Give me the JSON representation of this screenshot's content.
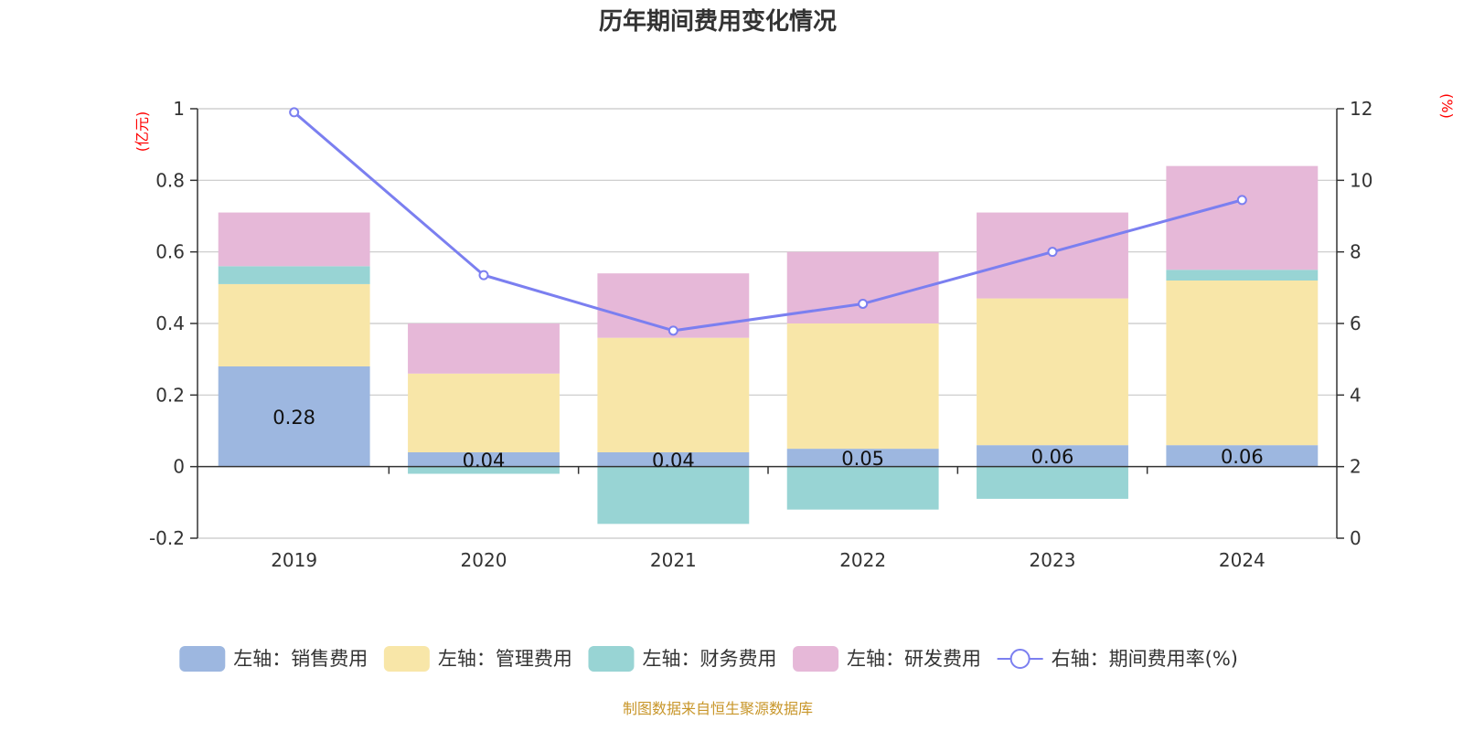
{
  "title": "历年期间费用变化情况",
  "source_note": "制图数据来自恒生聚源数据库",
  "colors": {
    "sales": "#9db7e0",
    "admin": "#f8e6a8",
    "finance": "#98d4d4",
    "rd": "#e6b8d8",
    "rate_line": "#7b7ff0",
    "unit_text": "#ff0000",
    "axis": "#333333",
    "grid": "#c8c8c8",
    "source_text": "#c8962a"
  },
  "chart_data": {
    "type": "bar",
    "stacked": true,
    "title": "历年期间费用变化情况",
    "categories": [
      "2019",
      "2020",
      "2021",
      "2022",
      "2023",
      "2024"
    ],
    "y_left": {
      "unit": "(亿元)",
      "ylim": [
        -0.2,
        1
      ],
      "ticks": [
        -0.2,
        0,
        0.2,
        0.4,
        0.6,
        0.8,
        1
      ],
      "tick_labels": [
        "-0.2",
        "0",
        "0.2",
        "0.4",
        "0.6",
        "0.8",
        "1"
      ]
    },
    "y_right": {
      "unit": "(%)",
      "ylim": [
        0,
        12
      ],
      "ticks": [
        0,
        2,
        4,
        6,
        8,
        10,
        12
      ],
      "tick_labels": [
        "0",
        "2",
        "4",
        "6",
        "8",
        "10",
        "12"
      ]
    },
    "grid": true,
    "legend_position": "bottom",
    "series": [
      {
        "name": "左轴：销售费用",
        "type": "bar",
        "axis": "left",
        "color_key": "sales",
        "values": [
          0.28,
          0.04,
          0.04,
          0.05,
          0.06,
          0.06
        ],
        "data_labels": [
          "0.28",
          "0.04",
          "0.04",
          "0.05",
          "0.06",
          "0.06"
        ]
      },
      {
        "name": "左轴：管理费用",
        "type": "bar",
        "axis": "left",
        "color_key": "admin",
        "values": [
          0.23,
          0.22,
          0.32,
          0.35,
          0.41,
          0.46
        ]
      },
      {
        "name": "左轴：财务费用",
        "type": "bar",
        "axis": "left",
        "color_key": "finance",
        "values": [
          0.05,
          -0.02,
          -0.16,
          -0.12,
          -0.09,
          0.03
        ]
      },
      {
        "name": "左轴：研发费用",
        "type": "bar",
        "axis": "left",
        "color_key": "rd",
        "values": [
          0.15,
          0.14,
          0.18,
          0.2,
          0.24,
          0.29
        ]
      },
      {
        "name": "右轴：期间费用率(%)",
        "type": "line",
        "axis": "right",
        "color_key": "rate_line",
        "values": [
          11.9,
          7.35,
          5.8,
          6.55,
          8.0,
          9.45
        ]
      }
    ]
  }
}
